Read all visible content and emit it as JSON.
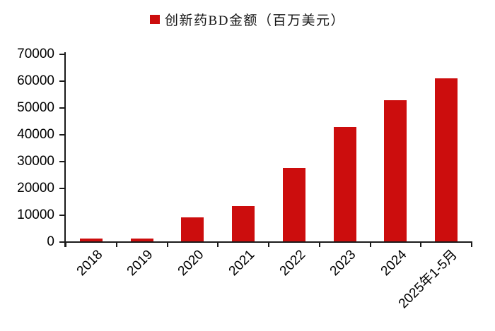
{
  "chart_data": {
    "type": "bar",
    "title": "",
    "legend": "创新药BD金额（百万美元）",
    "legend_position": "top-center",
    "legend_marker": "square",
    "categories": [
      "2018",
      "2019",
      "2020",
      "2021",
      "2022",
      "2023",
      "2024",
      "2025年1-5月"
    ],
    "values": [
      1000,
      1100,
      9000,
      13200,
      27300,
      42700,
      52500,
      60700
    ],
    "xlabel": "",
    "ylabel": "",
    "ylim": [
      0,
      70000
    ],
    "yticks": [
      0,
      10000,
      20000,
      30000,
      40000,
      50000,
      60000,
      70000
    ],
    "grid": false,
    "bar_color": "#cc0d0d",
    "axis_color": "#1a1a1a",
    "background": "#ffffff"
  }
}
